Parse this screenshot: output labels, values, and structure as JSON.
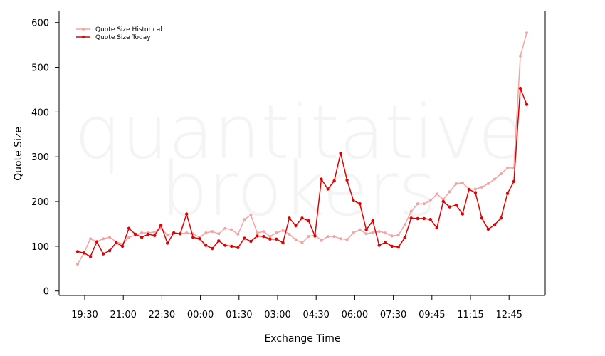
{
  "watermark": {
    "line1": "quantitative",
    "line2": "brokers"
  },
  "colors": {
    "historical": "#f4a3a3",
    "today": "#e00000",
    "axis": "#000000"
  },
  "chart_data": {
    "type": "line",
    "xlabel": "Exchange Time",
    "ylabel": "Quote Size",
    "ylim": [
      -10,
      625
    ],
    "yticks": [
      0,
      100,
      200,
      300,
      400,
      500,
      600
    ],
    "xticks": [
      "19:30",
      "21:00",
      "22:30",
      "00:00",
      "01:30",
      "03:00",
      "04:30",
      "06:00",
      "07:30",
      "09:45",
      "11:15",
      "12:45"
    ],
    "legend": {
      "position": "top-left"
    },
    "series": [
      {
        "name": "Quote Size Historical",
        "values": [
          60,
          85,
          117,
          110,
          117,
          120,
          110,
          105,
          120,
          125,
          130,
          130,
          132,
          140,
          125,
          130,
          128,
          130,
          128,
          120,
          130,
          133,
          128,
          140,
          137,
          127,
          160,
          170,
          130,
          133,
          122,
          130,
          135,
          127,
          115,
          108,
          122,
          125,
          113,
          122,
          122,
          117,
          115,
          130,
          137,
          128,
          131,
          133,
          130,
          123,
          125,
          148,
          178,
          195,
          195,
          202,
          217,
          205,
          222,
          240,
          242,
          228,
          228,
          232,
          240,
          250,
          262,
          275,
          275,
          525,
          577
        ]
      },
      {
        "name": "Quote Size Today",
        "values": [
          88,
          85,
          77,
          110,
          83,
          90,
          108,
          100,
          140,
          127,
          120,
          127,
          124,
          147,
          107,
          130,
          128,
          172,
          120,
          117,
          102,
          95,
          112,
          102,
          100,
          97,
          118,
          111,
          123,
          122,
          116,
          116,
          108,
          163,
          146,
          163,
          157,
          123,
          250,
          228,
          246,
          308,
          248,
          202,
          195,
          137,
          157,
          102,
          109,
          100,
          98,
          119,
          163,
          162,
          162,
          160,
          141,
          200,
          188,
          192,
          172,
          227,
          220,
          163,
          138,
          148,
          163,
          218,
          245,
          453,
          417
        ]
      }
    ]
  }
}
